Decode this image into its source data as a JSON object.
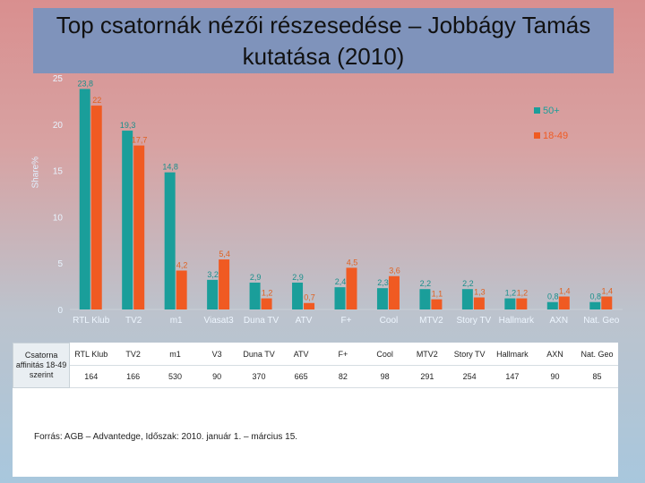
{
  "title": "Top csatornák nézői részesedése – Jobbágy Tamás kutatása (2010)",
  "chart_data": {
    "type": "bar",
    "ylabel": "Share%",
    "ylim": [
      0,
      25
    ],
    "yticks": [
      0,
      5,
      10,
      15,
      20,
      25
    ],
    "legend_position": "top-right",
    "categories": [
      "RTL Klub",
      "TV2",
      "m1",
      "Viasat3",
      "Duna TV",
      "ATV",
      "F+",
      "Cool",
      "MTV2",
      "Story TV",
      "Hallmark",
      "AXN",
      "Nat. Geo"
    ],
    "series": [
      {
        "name": "50+",
        "color": "#1a9e9a",
        "values": [
          23.8,
          19.3,
          14.8,
          3.2,
          2.9,
          2.9,
          2.4,
          2.3,
          2.2,
          2.2,
          1.2,
          0.8,
          0.8
        ]
      },
      {
        "name": "18-49",
        "color": "#f05a22",
        "values": [
          22,
          17.7,
          4.2,
          5.4,
          1.2,
          0.7,
          4.5,
          3.6,
          1.1,
          1.3,
          1.2,
          1.4,
          1.4
        ]
      }
    ],
    "data_labels": {
      "50+": [
        "23,8",
        "19,3",
        "14,8",
        "3,2",
        "2,9",
        "2,9",
        "2,4",
        "2,3",
        "2,2",
        "2,2",
        "1,2",
        "0,8",
        "0,8"
      ],
      "18-49": [
        "22",
        "17,7",
        "4,2",
        "5,4",
        "1,2",
        "0,7",
        "4,5",
        "3,6",
        "1,1",
        "1,3",
        "1,2",
        "1,4",
        "1,4"
      ]
    }
  },
  "affinity_table": {
    "header": "Csatorna affinitás 18-49 szerint",
    "channels": [
      "RTL Klub",
      "TV2",
      "m1",
      "V3",
      "Duna TV",
      "ATV",
      "F+",
      "Cool",
      "MTV2",
      "Story TV",
      "Hallmark",
      "AXN",
      "Nat. Geo"
    ],
    "values": [
      "164",
      "166",
      "530",
      "90",
      "370",
      "665",
      "82",
      "98",
      "291",
      "254",
      "147",
      "90",
      "85"
    ]
  },
  "source": "Forrás: AGB – Advantedge, Időszak: 2010. január 1. – március 15."
}
